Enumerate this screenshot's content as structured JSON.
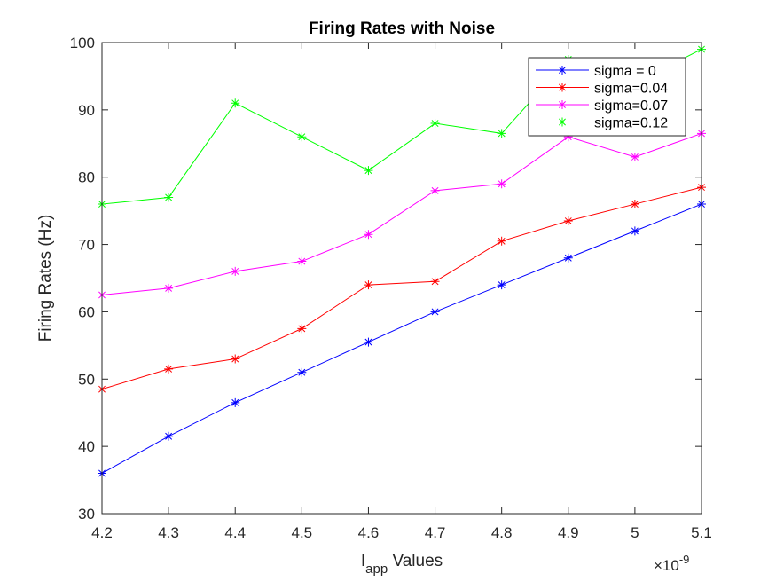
{
  "chart_data": {
    "type": "line",
    "title": "Firing Rates with Noise",
    "xlabel_main": "I",
    "xlabel_sub": "app",
    "xlabel_rest": " Values",
    "ylabel": "Firing Rates (Hz)",
    "x_exponent_base": "×10",
    "x_exponent_power": "-9",
    "x": [
      4.2,
      4.3,
      4.4,
      4.5,
      4.6,
      4.7,
      4.8,
      4.9,
      5.0,
      5.1
    ],
    "x_tick_labels": [
      "4.2",
      "4.3",
      "4.4",
      "4.5",
      "4.6",
      "4.7",
      "4.8",
      "4.9",
      "5",
      "5.1"
    ],
    "xlim": [
      4.2,
      5.1
    ],
    "ylim": [
      30,
      100
    ],
    "y_ticks": [
      30,
      40,
      50,
      60,
      70,
      80,
      90,
      100
    ],
    "y_tick_labels": [
      "30",
      "40",
      "50",
      "60",
      "70",
      "80",
      "90",
      "100"
    ],
    "grid": false,
    "legend_placement": "top-right",
    "marker": "asterisk",
    "series": [
      {
        "name": "sigma = 0",
        "color": "#0000ff",
        "values": [
          36,
          41.5,
          46.5,
          51,
          55.5,
          60,
          64,
          68,
          72,
          76
        ]
      },
      {
        "name": "sigma=0.04",
        "color": "#ff0000",
        "values": [
          48.5,
          51.5,
          53,
          57.5,
          64,
          64.5,
          70.5,
          73.5,
          76,
          78.5
        ]
      },
      {
        "name": "sigma=0.07",
        "color": "#ff00ff",
        "values": [
          62.5,
          63.5,
          66,
          67.5,
          71.5,
          78,
          79,
          86,
          83,
          86.5
        ]
      },
      {
        "name": "sigma=0.12",
        "color": "#00ff00",
        "values": [
          76,
          77,
          91,
          86,
          81,
          88,
          86.5,
          97.5,
          94,
          99
        ]
      }
    ]
  }
}
